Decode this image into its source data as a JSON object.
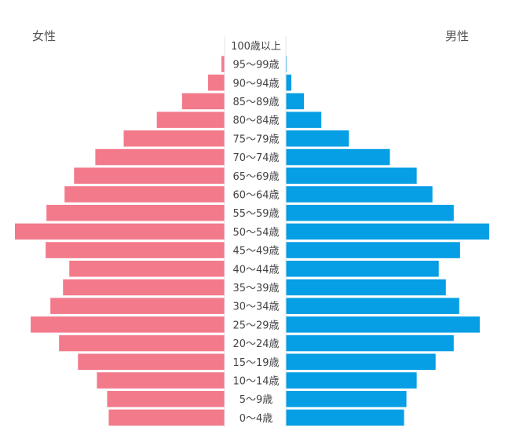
{
  "chart_data": {
    "type": "bar",
    "orientation": "horizontal-pyramid",
    "categories": [
      "100歳以上",
      "95〜99歳",
      "90〜94歳",
      "85〜89歳",
      "80〜84歳",
      "75〜79歳",
      "70〜74歳",
      "65〜69歳",
      "60〜64歳",
      "55〜59歳",
      "50〜54歳",
      "45〜49歳",
      "40〜44歳",
      "35〜39歳",
      "30〜34歳",
      "25〜29歳",
      "20〜24歳",
      "15〜19歳",
      "10〜14歳",
      "5〜9歳",
      "0〜4歳"
    ],
    "series": [
      {
        "name": "女性",
        "side": "left",
        "color": "#f27a8a",
        "values": [
          0,
          4,
          21,
          54,
          86,
          128,
          164,
          191,
          203,
          226,
          266,
          227,
          197,
          205,
          221,
          246,
          210,
          186,
          162,
          149,
          147
        ]
      },
      {
        "name": "男性",
        "side": "right",
        "color": "#069ee4",
        "values": [
          0,
          1,
          7,
          23,
          45,
          80,
          132,
          166,
          186,
          213,
          258,
          221,
          194,
          203,
          220,
          246,
          213,
          190,
          166,
          153,
          150
        ]
      }
    ],
    "legend_position": "top-corners",
    "grid": false
  }
}
